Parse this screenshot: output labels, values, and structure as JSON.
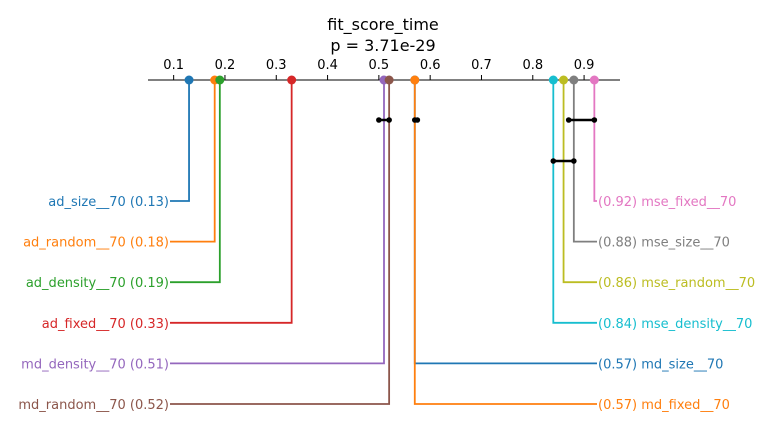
{
  "chart_data": {
    "type": "critical-difference",
    "title": "fit_score_time",
    "subtitle": "p = 3.71e-29",
    "axis": {
      "range": [
        0.05,
        0.97
      ],
      "ticks": [
        0.1,
        0.2,
        0.3,
        0.4,
        0.5,
        0.6,
        0.7,
        0.8,
        0.9
      ],
      "tick_labels": [
        "0.1",
        "0.2",
        "0.3",
        "0.4",
        "0.5",
        "0.6",
        "0.7",
        "0.8",
        "0.9"
      ]
    },
    "left_entries": [
      {
        "name": "ad_size__70",
        "value": 0.13,
        "label": "ad_size__70 (0.13)",
        "color": "#1f77b4"
      },
      {
        "name": "ad_random__70",
        "value": 0.18,
        "label": "ad_random__70 (0.18)",
        "color": "#ff7f0e"
      },
      {
        "name": "ad_density__70",
        "value": 0.19,
        "label": "ad_density__70 (0.19)",
        "color": "#2ca02c"
      },
      {
        "name": "ad_fixed__70",
        "value": 0.33,
        "label": "ad_fixed__70 (0.33)",
        "color": "#d62728"
      },
      {
        "name": "md_density__70",
        "value": 0.51,
        "label": "md_density__70 (0.51)",
        "color": "#9467bd"
      },
      {
        "name": "md_random__70",
        "value": 0.52,
        "label": "md_random__70 (0.52)",
        "color": "#8c564b"
      }
    ],
    "right_entries": [
      {
        "name": "mse_fixed__70",
        "value": 0.92,
        "label": "(0.92) mse_fixed__70",
        "color": "#e377c2"
      },
      {
        "name": "mse_size__70",
        "value": 0.88,
        "label": "(0.88) mse_size__70",
        "color": "#7f7f7f"
      },
      {
        "name": "mse_random__70",
        "value": 0.86,
        "label": "(0.86) mse_random__70",
        "color": "#bcbd22"
      },
      {
        "name": "mse_density__70",
        "value": 0.84,
        "label": "(0.84) mse_density__70",
        "color": "#17becf"
      },
      {
        "name": "md_size__70",
        "value": 0.57,
        "label": "(0.57) md_size__70",
        "color": "#1f77b4"
      },
      {
        "name": "md_fixed__70",
        "value": 0.57,
        "label": "(0.57) md_fixed__70",
        "color": "#ff7f0e"
      }
    ],
    "cliques": [
      {
        "from": 0.5,
        "to": 0.52
      },
      {
        "from": 0.57,
        "to": 0.575
      },
      {
        "from": 0.87,
        "to": 0.92
      },
      {
        "from": 0.84,
        "to": 0.88
      }
    ]
  }
}
